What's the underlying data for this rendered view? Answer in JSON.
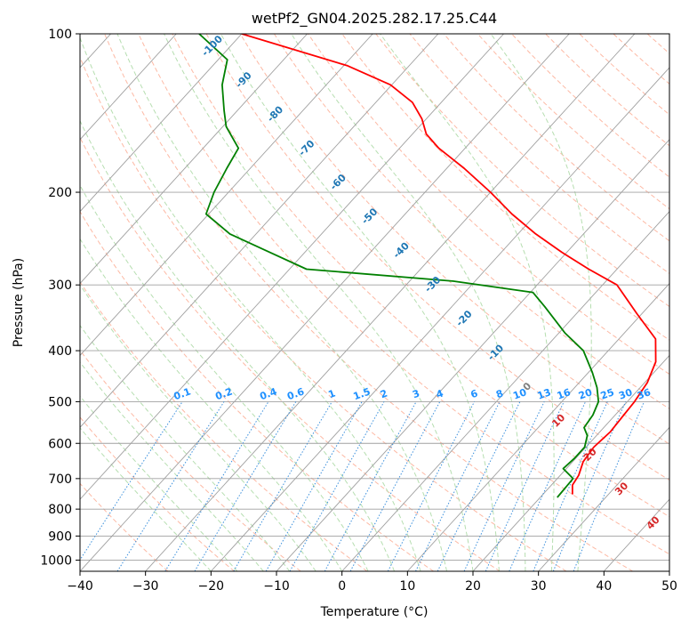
{
  "chart_data": {
    "type": "line",
    "title": "wetPf2_GN04.2025.282.17.25.C44",
    "xlabel": "Temperature (°C)",
    "ylabel": "Pressure (hPa)",
    "xlim": [
      -40,
      50
    ],
    "ylim": [
      1050,
      100
    ],
    "y_scale": "log",
    "grid": true,
    "x_ticks": [
      "−40",
      "−30",
      "−20",
      "−10",
      "0",
      "10",
      "20",
      "30",
      "40",
      "50"
    ],
    "y_ticks": [
      "100",
      "200",
      "300",
      "400",
      "500",
      "600",
      "700",
      "800",
      "900",
      "1000"
    ],
    "series": [
      {
        "color": "#ff0000",
        "p": [
          750,
          720,
          690,
          650,
          610,
          570,
          530,
          500,
          460,
          420,
          380,
          340,
          300,
          280,
          260,
          240,
          220,
          200,
          180,
          165,
          155,
          145,
          135,
          125,
          115,
          100
        ],
        "t": [
          24.5,
          23.2,
          22.8,
          21.6,
          21.2,
          21.6,
          21.3,
          21.1,
          20.4,
          18.8,
          15.6,
          9.2,
          2.2,
          -4.3,
          -10.8,
          -17.3,
          -23.7,
          -30.0,
          -37.4,
          -44.0,
          -47.9,
          -50.7,
          -54.4,
          -60.2,
          -69.4,
          -90.0
        ]
      },
      {
        "color": "#008000",
        "p": [
          760,
          700,
          670,
          640,
          610,
          580,
          560,
          530,
          500,
          470,
          440,
          400,
          370,
          330,
          310,
          295,
          280,
          260,
          240,
          220,
          200,
          180,
          165,
          150,
          140,
          125,
          112,
          100
        ],
        "t": [
          22.6,
          22.4,
          19.5,
          19.8,
          19.8,
          18.6,
          17.0,
          16.6,
          15.6,
          13.4,
          10.6,
          6.2,
          0.9,
          -5.8,
          -9.6,
          -23.4,
          -47.4,
          -55.4,
          -64.0,
          -70.4,
          -72.2,
          -73.6,
          -74.6,
          -79.5,
          -82.0,
          -85.9,
          -88.6,
          -96.5
        ]
      }
    ],
    "dry_adiabat_labels": [
      "-100",
      "-90",
      "-80",
      "-70",
      "-60",
      "-50",
      "-40",
      "-30",
      "-20",
      "-10",
      "0",
      "10",
      "20",
      "30",
      "40"
    ],
    "mixing_ratio_labels": [
      "0.1",
      "0.2",
      "0.4",
      "0.6",
      "1",
      "1.5",
      "2",
      "3",
      "4",
      "6",
      "8",
      "10",
      "13",
      "16",
      "20",
      "25",
      "30",
      "36"
    ],
    "colors": {
      "isotherm": "#a0a0a0",
      "isobar": "#a0a0a0",
      "dry_adiabat": "#fdb9a4",
      "moist_adiabat": "#b6deb0",
      "mixing_ratio": "#3a8fdc",
      "curve_label_dry": "#1f77b4",
      "curve_label_warm": "#d62728",
      "curve_label_zero": "#7f7f7f",
      "mixing_label": "#1e90ff"
    }
  }
}
